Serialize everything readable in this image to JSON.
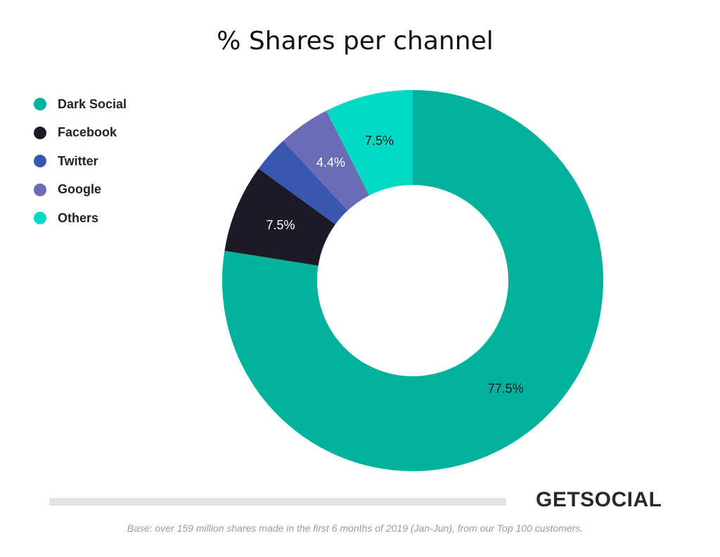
{
  "chart_data": {
    "type": "pie",
    "title": "% Shares per channel",
    "legend_position": "left",
    "slices": [
      {
        "name": "Dark Social",
        "value": 77.5,
        "label": "77.5%",
        "color": "#00b29c",
        "label_color": "#1a1a1a"
      },
      {
        "name": "Facebook",
        "value": 7.5,
        "label": "7.5%",
        "color": "#1c1b25",
        "label_color": "#ffffff"
      },
      {
        "name": "Twitter",
        "value": 3.1,
        "label": "",
        "color": "#3a57b0",
        "label_color": "#ffffff"
      },
      {
        "name": "Google",
        "value": 4.4,
        "label": "4.4%",
        "color": "#6a6cb5",
        "label_color": "#ffffff"
      },
      {
        "name": "Others",
        "value": 7.5,
        "label": "7.5%",
        "color": "#00d9c4",
        "label_color": "#1a1a1a"
      }
    ]
  },
  "brand": "GETSOCIAL",
  "footnote": "Base: over 159 million shares made in the first 6 months of 2019 (Jan-Jun), from our Top 100 customers."
}
